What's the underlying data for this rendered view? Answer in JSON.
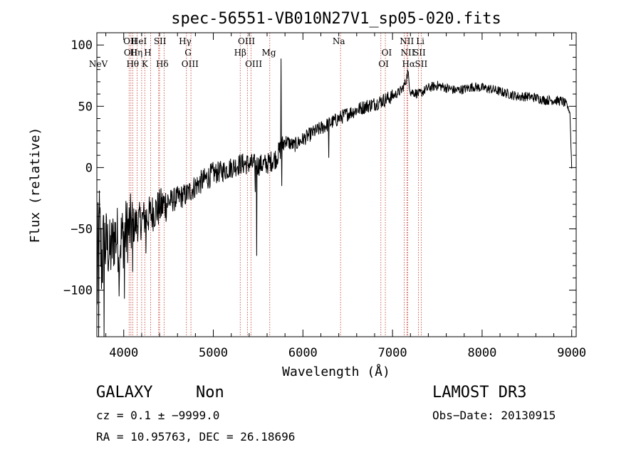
{
  "chart_data": {
    "type": "line",
    "title": "spec-56551-VB010N27V1_sp05-020.fits",
    "xlabel": "Wavelength (Å)",
    "ylabel": "Flux (relative)",
    "xlim": [
      3700,
      9050
    ],
    "ylim": [
      -138,
      110
    ],
    "xticks": [
      4000,
      5000,
      6000,
      7000,
      8000,
      9000
    ],
    "xtick_labels": [
      "4000",
      "5000",
      "6000",
      "7000",
      "8000",
      "9000"
    ],
    "yticks": [
      -100,
      -50,
      0,
      50,
      100
    ],
    "ytick_labels": [
      "−100",
      "−50",
      "0",
      "50",
      "100"
    ],
    "line_color": "#000000",
    "marker_color": "#c0392b",
    "series": [
      {
        "name": "flux",
        "anchors": [
          [
            3700,
            -110
          ],
          [
            3720,
            -40
          ],
          [
            3750,
            -75
          ],
          [
            3800,
            -60
          ],
          [
            3850,
            -70
          ],
          [
            3900,
            -55
          ],
          [
            3950,
            -60
          ],
          [
            4000,
            -55
          ],
          [
            4050,
            -50
          ],
          [
            4100,
            -48
          ],
          [
            4150,
            -45
          ],
          [
            4200,
            -43
          ],
          [
            4250,
            -40
          ],
          [
            4300,
            -38
          ],
          [
            4350,
            -35
          ],
          [
            4400,
            -33
          ],
          [
            4450,
            -30
          ],
          [
            4500,
            -28
          ],
          [
            4600,
            -25
          ],
          [
            4700,
            -22
          ],
          [
            4800,
            -15
          ],
          [
            4900,
            -10
          ],
          [
            5000,
            -5
          ],
          [
            5100,
            -3
          ],
          [
            5200,
            0
          ],
          [
            5300,
            3
          ],
          [
            5400,
            3
          ],
          [
            5500,
            2
          ],
          [
            5600,
            3
          ],
          [
            5700,
            8
          ],
          [
            5750,
            15
          ],
          [
            5800,
            22
          ],
          [
            5900,
            18
          ],
          [
            6000,
            23
          ],
          [
            6100,
            28
          ],
          [
            6200,
            32
          ],
          [
            6300,
            36
          ],
          [
            6400,
            40
          ],
          [
            6500,
            44
          ],
          [
            6600,
            47
          ],
          [
            6700,
            50
          ],
          [
            6800,
            52
          ],
          [
            6900,
            55
          ],
          [
            7000,
            58
          ],
          [
            7100,
            63
          ],
          [
            7150,
            70
          ],
          [
            7170,
            78
          ],
          [
            7200,
            62
          ],
          [
            7300,
            60
          ],
          [
            7400,
            65
          ],
          [
            7500,
            67
          ],
          [
            7600,
            65
          ],
          [
            7700,
            63
          ],
          [
            7800,
            64
          ],
          [
            7900,
            66
          ],
          [
            8000,
            65
          ],
          [
            8100,
            64
          ],
          [
            8200,
            62
          ],
          [
            8300,
            60
          ],
          [
            8400,
            58
          ],
          [
            8500,
            58
          ],
          [
            8600,
            57
          ],
          [
            8700,
            55
          ],
          [
            8800,
            55
          ],
          [
            8900,
            54
          ],
          [
            8950,
            50
          ],
          [
            8980,
            45
          ],
          [
            9000,
            0
          ]
        ],
        "features": [
          [
            5756,
            89
          ],
          [
            5760,
            17
          ],
          [
            5765,
            -15
          ],
          [
            5484,
            -72
          ],
          [
            5470,
            -20
          ],
          [
            3720,
            -138
          ],
          [
            3780,
            -138
          ],
          [
            3950,
            -105
          ],
          [
            4010,
            -107
          ],
          [
            6290,
            8
          ],
          [
            7170,
            80
          ],
          [
            4100,
            -85
          ],
          [
            4250,
            -70
          ]
        ]
      }
    ],
    "lines": [
      {
        "label": "NeV",
        "x": 3426,
        "level": 3
      },
      {
        "label": "OII",
        "x": 4072,
        "level": 1
      },
      {
        "label": "OII",
        "x": 4078,
        "level": 2
      },
      {
        "label": "Hθ",
        "x": 4100,
        "level": 3
      },
      {
        "label": "Hη",
        "x": 4140,
        "level": 2
      },
      {
        "label": "HeI",
        "x": 4170,
        "level": 1
      },
      {
        "label": "K",
        "x": 4235,
        "level": 3
      },
      {
        "label": "H",
        "x": 4268,
        "level": 2
      },
      {
        "label": "SII",
        "x": 4405,
        "level": 1
      },
      {
        "label": "Hδ",
        "x": 4430,
        "level": 3
      },
      {
        "label": "Hγ",
        "x": 4685,
        "level": 1
      },
      {
        "label": "G",
        "x": 4718,
        "level": 2
      },
      {
        "label": "OIII",
        "x": 4740,
        "level": 3
      },
      {
        "label": "Hβ",
        "x": 5300,
        "level": 2
      },
      {
        "label": "OIII",
        "x": 5370,
        "level": 1
      },
      {
        "label": "OIII",
        "x": 5450,
        "level": 3
      },
      {
        "label": "Mg",
        "x": 5620,
        "level": 2
      },
      {
        "label": "Na",
        "x": 6400,
        "level": 1
      },
      {
        "label": "OI",
        "x": 6935,
        "level": 2
      },
      {
        "label": "OI",
        "x": 6900,
        "level": 3
      },
      {
        "label": "NII",
        "x": 7160,
        "level": 1
      },
      {
        "label": "NII",
        "x": 7170,
        "level": 2
      },
      {
        "label": "Hα",
        "x": 7180,
        "level": 3
      },
      {
        "label": "Li",
        "x": 7310,
        "level": 1
      },
      {
        "label": "SII",
        "x": 7300,
        "level": 2
      },
      {
        "label": "SII",
        "x": 7320,
        "level": 3
      }
    ],
    "marker_positions": [
      4060,
      4080,
      4100,
      4150,
      4200,
      4235,
      4300,
      4390,
      4400,
      4450,
      4700,
      4750,
      5300,
      5380,
      5420,
      5630,
      6420,
      6870,
      6920,
      7130,
      7160,
      7170,
      7290,
      7320
    ]
  },
  "info": {
    "object_class": "GALAXY",
    "subclass": "Non",
    "survey": "LAMOST DR3",
    "cz_line": "cz = 0.1 ± −9999.0",
    "obs_date": "Obs−Date: 20130915",
    "coords_line": "RA =  10.95763, DEC =  26.18696"
  }
}
